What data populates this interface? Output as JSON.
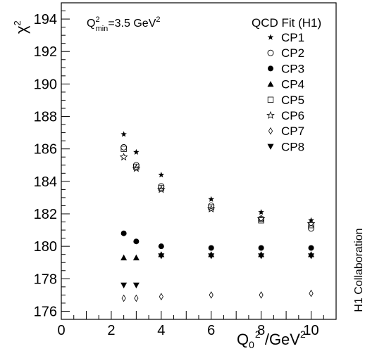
{
  "chart_data": {
    "type": "scatter",
    "xlabel": {
      "main": "Q",
      "sub": "0",
      "sup": "2",
      "rest": " /GeV",
      "rest_sup": "2"
    },
    "ylabel": {
      "main": "χ",
      "sup": "2"
    },
    "xlim": [
      0,
      11
    ],
    "ylim": [
      175.5,
      195
    ],
    "x_ticks": [
      0,
      2,
      4,
      6,
      8,
      10
    ],
    "y_ticks": [
      176,
      178,
      180,
      182,
      184,
      186,
      188,
      190,
      192,
      194
    ],
    "grid": false,
    "annotation": {
      "prefix": "Q",
      "sup": "2",
      "sub": "min",
      "rest": "=3.5 GeV",
      "rest_sup": "2"
    },
    "legend_title": "QCD Fit (H1)",
    "legend_position": "top-right",
    "side_label": "H1 Collaboration",
    "series": [
      {
        "name": "CP1",
        "marker": "star-filled",
        "x": [
          2.5,
          3,
          4,
          6,
          8,
          10
        ],
        "y": [
          186.9,
          185.8,
          184.4,
          182.9,
          182.1,
          181.6
        ]
      },
      {
        "name": "CP2",
        "marker": "circle-open",
        "x": [
          2.5,
          3,
          4,
          6,
          8,
          10
        ],
        "y": [
          186.1,
          185.0,
          183.7,
          182.5,
          181.7,
          181.1
        ]
      },
      {
        "name": "CP3",
        "marker": "circle-filled",
        "x": [
          2.5,
          3,
          4,
          6,
          8,
          10
        ],
        "y": [
          180.8,
          180.3,
          180.0,
          179.9,
          179.9,
          179.9
        ]
      },
      {
        "name": "CP4",
        "marker": "triangle-up",
        "x": [
          2.5,
          3,
          4,
          6,
          8,
          10
        ],
        "y": [
          179.3,
          179.3,
          179.5,
          179.5,
          179.5,
          179.5
        ]
      },
      {
        "name": "CP5",
        "marker": "square-open",
        "x": [
          2.5,
          3,
          4,
          6,
          8,
          10
        ],
        "y": [
          186.0,
          184.9,
          183.6,
          182.4,
          181.6,
          181.3
        ]
      },
      {
        "name": "CP6",
        "marker": "star-open",
        "x": [
          2.5,
          3,
          4,
          6,
          8,
          10
        ],
        "y": [
          185.5,
          184.8,
          183.5,
          182.3,
          181.7,
          181.4
        ]
      },
      {
        "name": "CP7",
        "marker": "diamond-open",
        "x": [
          2.5,
          3,
          4,
          6,
          8,
          10
        ],
        "y": [
          176.8,
          176.8,
          176.9,
          177.0,
          177.0,
          177.1
        ]
      },
      {
        "name": "CP8",
        "marker": "triangle-down",
        "x": [
          2.5,
          3,
          4,
          6,
          8,
          10
        ],
        "y": [
          177.6,
          177.6,
          179.4,
          179.4,
          179.4,
          179.4
        ]
      }
    ]
  }
}
